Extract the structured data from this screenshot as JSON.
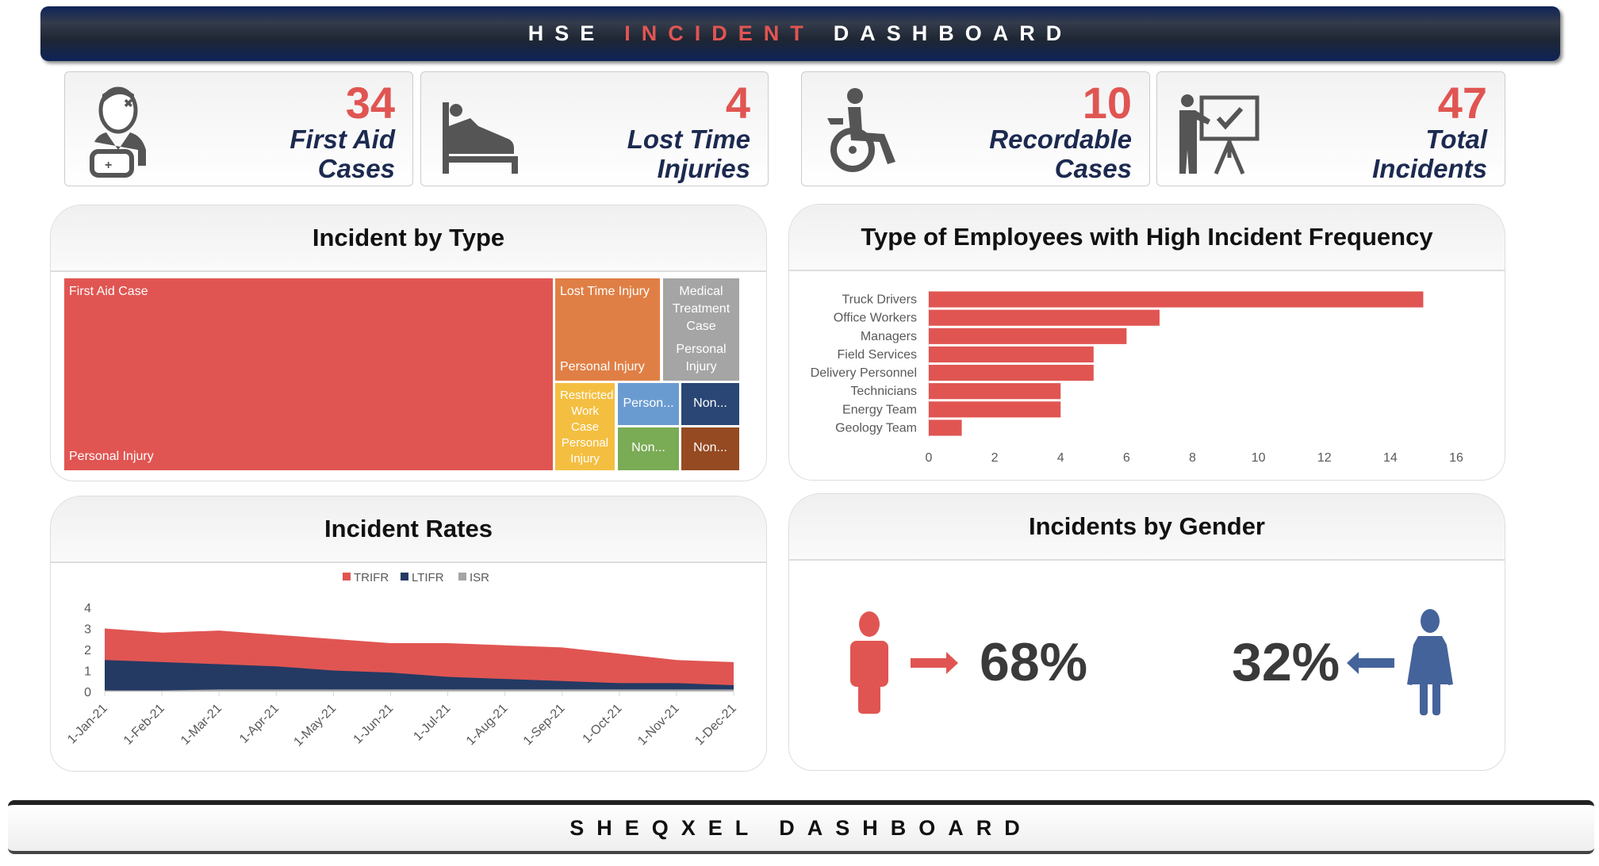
{
  "header": {
    "title_prefix": "HSE",
    "title_highlight": "INCIDENT",
    "title_suffix": "DASHBOARD"
  },
  "kpis": [
    {
      "value": "34",
      "label1": "First Aid",
      "label2": "Cases",
      "icon": "first-aid-person-icon"
    },
    {
      "value": "4",
      "label1": "Lost Time",
      "label2": "Injuries",
      "icon": "hospital-bed-icon"
    },
    {
      "value": "10",
      "label1": "Recordable",
      "label2": "Cases",
      "icon": "wheelchair-icon"
    },
    {
      "value": "47",
      "label1": "Total",
      "label2": "Incidents",
      "icon": "presentation-icon"
    }
  ],
  "colors": {
    "accent": "#e05552",
    "navy": "#1c2a50",
    "female": "#44639a"
  },
  "incident_by_type": {
    "title": "Incident by Type",
    "tiles": [
      {
        "category": "First Aid Case",
        "sub": "Personal Injury",
        "color": "#e05552"
      },
      {
        "category": "Lost Time Injury",
        "sub": "Personal Injury",
        "color": "#e07f45"
      },
      {
        "category": "Medical Treatment Case",
        "sub": "Personal Injury",
        "color": "#a5a5a5"
      },
      {
        "category": "Restricted Work Case",
        "sub": "Personal Injury",
        "color": "#f4bf41"
      },
      {
        "category": "Person...",
        "color": "#6a9bd0"
      },
      {
        "category": "Non...",
        "color": "#2a4674"
      },
      {
        "category": "Non...",
        "color": "#7aab55"
      },
      {
        "category": "Non...",
        "color": "#954a22"
      }
    ]
  },
  "chart_data": [
    {
      "type": "bar",
      "orientation": "horizontal",
      "title": "Type of Employees with High Incident Frequency",
      "categories": [
        "Truck Drivers",
        "Office Workers",
        "Managers",
        "Field Services",
        "Delivery Personnel",
        "Technicians",
        "Energy Team",
        "Geology Team"
      ],
      "values": [
        15,
        7,
        6,
        5,
        5,
        4,
        4,
        1
      ],
      "xlim": [
        0,
        16
      ],
      "xticks": [
        "0",
        "2",
        "4",
        "6",
        "8",
        "10",
        "12",
        "14",
        "16"
      ],
      "color": "#e05552",
      "grid": false
    },
    {
      "type": "area",
      "title": "Incident Rates",
      "legend": "top",
      "categories": [
        "1-Jan-21",
        "1-Feb-21",
        "1-Mar-21",
        "1-Apr-21",
        "1-May-21",
        "1-Jun-21",
        "1-Jul-21",
        "1-Aug-21",
        "1-Sep-21",
        "1-Oct-21",
        "1-Nov-21",
        "1-Dec-21"
      ],
      "series": [
        {
          "name": "TRIFR",
          "color": "#e05552",
          "values": [
            3.0,
            2.8,
            2.9,
            2.7,
            2.5,
            2.3,
            2.3,
            2.2,
            2.1,
            1.8,
            1.5,
            1.4
          ]
        },
        {
          "name": "LTIFR",
          "color": "#243a63",
          "values": [
            1.5,
            1.4,
            1.3,
            1.2,
            1.0,
            0.9,
            0.7,
            0.6,
            0.5,
            0.4,
            0.4,
            0.3
          ]
        },
        {
          "name": "ISR",
          "color": "#a5a5a5",
          "values": [
            0.05,
            0.05,
            0.1,
            0.1,
            0.1,
            0.1,
            0.1,
            0.1,
            0.1,
            0.1,
            0.1,
            0.1
          ]
        }
      ],
      "ylim": [
        0,
        4
      ],
      "yticks": [
        "0",
        "1",
        "2",
        "3",
        "4"
      ],
      "grid": false
    }
  ],
  "gender": {
    "title": "Incidents by Gender",
    "male_pct": "68%",
    "female_pct": "32%"
  },
  "footer": {
    "text": "SHEQXEL DASHBOARD"
  }
}
